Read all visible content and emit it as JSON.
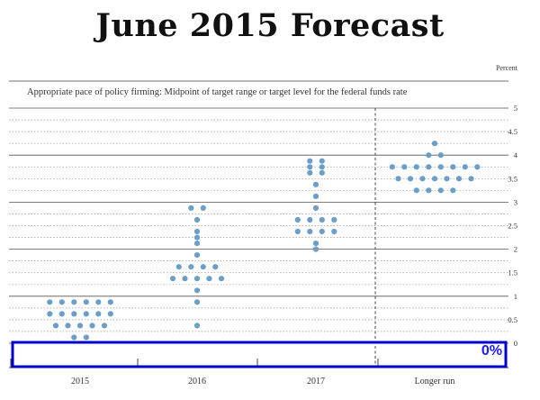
{
  "chart_data": {
    "type": "scatter",
    "title": "June 2015 Forecast",
    "subtitle": "Appropriate pace of policy firming: Midpoint of target range or target level for the federal funds rate",
    "unit_label": "Percent",
    "categories": [
      "2015",
      "2016",
      "2017",
      "Longer run"
    ],
    "ylim": [
      0,
      5
    ],
    "yticks": [
      0,
      0.5,
      1,
      1.5,
      2,
      2.5,
      3,
      3.5,
      4,
      4.5,
      5
    ],
    "grid": true,
    "dot_color": "#6b9fc9",
    "groups": [
      {
        "category": "2015",
        "dots": [
          {
            "y": 0.875,
            "n": 6
          },
          {
            "y": 0.625,
            "n": 6
          },
          {
            "y": 0.375,
            "n": 5
          },
          {
            "y": 0.125,
            "n": 2
          }
        ]
      },
      {
        "category": "2016",
        "dots": [
          {
            "y": 2.875,
            "n": 2
          },
          {
            "y": 2.625,
            "n": 1
          },
          {
            "y": 2.375,
            "n": 1
          },
          {
            "y": 2.25,
            "n": 1
          },
          {
            "y": 2.125,
            "n": 1
          },
          {
            "y": 1.875,
            "n": 1
          },
          {
            "y": 1.625,
            "n": 4
          },
          {
            "y": 1.375,
            "n": 5
          },
          {
            "y": 1.125,
            "n": 1
          },
          {
            "y": 0.875,
            "n": 1
          },
          {
            "y": 0.375,
            "n": 1
          }
        ]
      },
      {
        "category": "2017",
        "dots": [
          {
            "y": 3.875,
            "n": 2
          },
          {
            "y": 3.75,
            "n": 2
          },
          {
            "y": 3.625,
            "n": 2
          },
          {
            "y": 3.375,
            "n": 1
          },
          {
            "y": 3.125,
            "n": 1
          },
          {
            "y": 2.875,
            "n": 1
          },
          {
            "y": 2.625,
            "n": 4
          },
          {
            "y": 2.375,
            "n": 4
          },
          {
            "y": 2.125,
            "n": 1
          },
          {
            "y": 2.0,
            "n": 1
          }
        ]
      },
      {
        "category": "Longer run",
        "dots": [
          {
            "y": 4.25,
            "n": 1
          },
          {
            "y": 4.0,
            "n": 2
          },
          {
            "y": 3.75,
            "n": 8
          },
          {
            "y": 3.5,
            "n": 7
          },
          {
            "y": 3.25,
            "n": 4
          }
        ]
      }
    ],
    "annotation": {
      "text": "0%",
      "color": "#1a1aff",
      "box_color": "#0000cc"
    }
  }
}
